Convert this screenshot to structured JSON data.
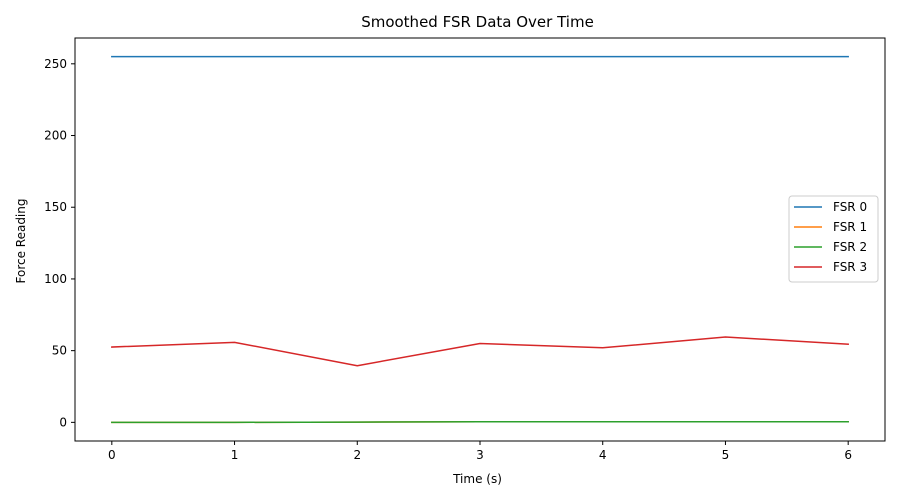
{
  "chart_data": {
    "type": "line",
    "title": "Smoothed FSR Data Over Time",
    "xlabel": "Time (s)",
    "ylabel": "Force Reading",
    "x": [
      0,
      1,
      2,
      3,
      4,
      5,
      6
    ],
    "xlim": [
      -0.3,
      6.3
    ],
    "ylim": [
      -13,
      268
    ],
    "xticks": [
      0,
      1,
      2,
      3,
      4,
      5,
      6
    ],
    "yticks": [
      0,
      50,
      100,
      150,
      200,
      250
    ],
    "grid": false,
    "legend_position": "center-right",
    "series": [
      {
        "name": "FSR 0",
        "color": "#1f77b4",
        "values": [
          255,
          255,
          255,
          255,
          255,
          255,
          255
        ]
      },
      {
        "name": "FSR 1",
        "color": "#ff7f0e",
        "values": [
          0,
          0,
          0.2,
          0.4,
          0.4,
          0.4,
          0.4
        ]
      },
      {
        "name": "FSR 2",
        "color": "#2ca02c",
        "values": [
          0,
          0,
          0.2,
          0.4,
          0.4,
          0.4,
          0.4
        ]
      },
      {
        "name": "FSR 3",
        "color": "#d62728",
        "values": [
          52.5,
          55.8,
          39.5,
          55,
          52,
          59.5,
          54.5
        ]
      }
    ]
  }
}
